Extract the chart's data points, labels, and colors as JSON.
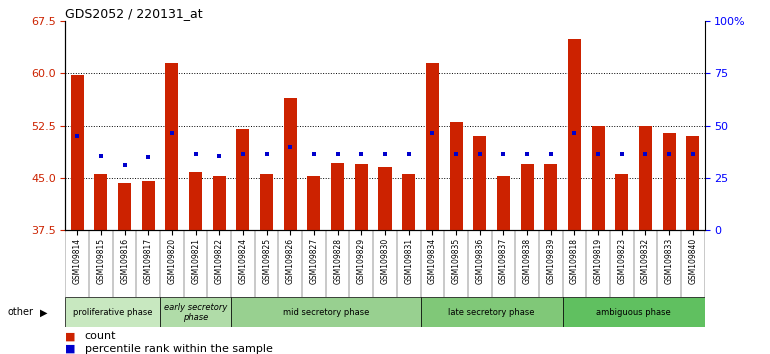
{
  "title": "GDS2052 / 220131_at",
  "samples": [
    "GSM109814",
    "GSM109815",
    "GSM109816",
    "GSM109817",
    "GSM109820",
    "GSM109821",
    "GSM109822",
    "GSM109824",
    "GSM109825",
    "GSM109826",
    "GSM109827",
    "GSM109828",
    "GSM109829",
    "GSM109830",
    "GSM109831",
    "GSM109834",
    "GSM109835",
    "GSM109836",
    "GSM109837",
    "GSM109838",
    "GSM109839",
    "GSM109818",
    "GSM109819",
    "GSM109823",
    "GSM109832",
    "GSM109833",
    "GSM109840"
  ],
  "red_values": [
    59.8,
    45.5,
    44.2,
    44.5,
    61.5,
    45.8,
    45.2,
    52.0,
    45.5,
    56.5,
    45.2,
    47.2,
    47.0,
    46.5,
    45.5,
    61.5,
    53.0,
    51.0,
    45.2,
    47.0,
    47.0,
    65.0,
    52.5,
    45.5,
    52.5,
    51.5,
    51.0
  ],
  "blue_values": [
    51.0,
    48.2,
    46.8,
    48.0,
    51.5,
    48.5,
    48.2,
    48.5,
    48.5,
    49.5,
    48.5,
    48.5,
    48.5,
    48.5,
    48.5,
    51.5,
    48.5,
    48.5,
    48.5,
    48.5,
    48.5,
    51.5,
    48.5,
    48.5,
    48.5,
    48.5,
    48.5
  ],
  "phases": [
    {
      "label": "proliferative phase",
      "start": 0,
      "end": 4,
      "color": "#c8e8c0"
    },
    {
      "label": "early secretory\nphase",
      "start": 4,
      "end": 7,
      "color": "#b0dca8"
    },
    {
      "label": "mid secretory phase",
      "start": 7,
      "end": 15,
      "color": "#98d090"
    },
    {
      "label": "late secretory phase",
      "start": 15,
      "end": 21,
      "color": "#80c878"
    },
    {
      "label": "ambiguous phase",
      "start": 21,
      "end": 27,
      "color": "#60c060"
    }
  ],
  "ylim_left": [
    37.5,
    67.5
  ],
  "ylim_right": [
    0,
    100
  ],
  "yticks_left": [
    37.5,
    45.0,
    52.5,
    60.0,
    67.5
  ],
  "yticks_right": [
    0,
    25,
    50,
    75,
    100
  ],
  "bar_color": "#cc2200",
  "dot_color": "#0000cc",
  "bar_bottom": 37.5,
  "grid_lines": [
    45.0,
    52.5,
    60.0
  ],
  "xlabel_bg": "#d8d8d8",
  "n_samples": 27
}
